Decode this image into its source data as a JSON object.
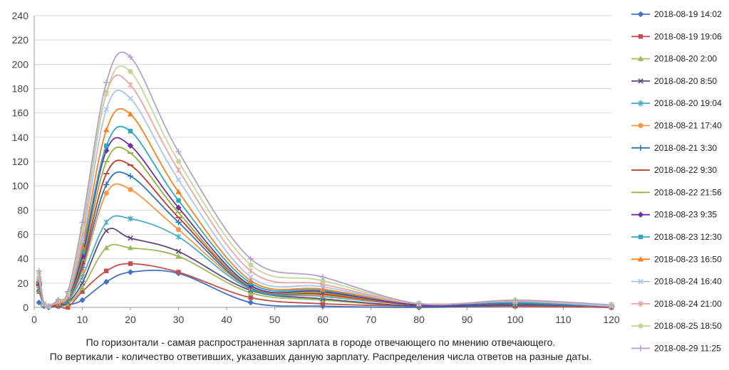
{
  "chart_data": {
    "type": "line",
    "title": "",
    "xlabel": "По горизонтали - самая распространенная зарплата в городе отвечающего по мнению отвечающего.",
    "ylabel": "По вертикали - количество ответивших, указавших данную зарплату. Распределения  числа ответов на разные даты.",
    "xlim": [
      0,
      120
    ],
    "ylim": [
      0,
      240
    ],
    "x_ticks": [
      "0",
      "10",
      "20",
      "30",
      "40",
      "50",
      "60",
      "70",
      "80",
      "90",
      "100",
      "110",
      "120"
    ],
    "y_ticks": [
      "0",
      "20",
      "40",
      "60",
      "80",
      "100",
      "120",
      "140",
      "160",
      "180",
      "200",
      "220",
      "240"
    ],
    "grid": "horizontal",
    "legend_position": "right",
    "x": [
      1,
      2,
      3,
      5,
      7,
      10,
      15,
      20,
      30,
      45,
      60,
      80,
      100,
      120
    ],
    "series": [
      {
        "name": "2018-08-19 14:02",
        "color": "#4472c4",
        "marker": "diamond",
        "values": [
          4,
          1,
          0,
          1,
          2,
          6,
          21,
          29,
          28,
          4,
          1,
          0,
          1,
          0
        ]
      },
      {
        "name": "2018-08-19 19:06",
        "color": "#c0504d",
        "marker": "square",
        "values": [
          13,
          2,
          1,
          1,
          0,
          13,
          30,
          36,
          29,
          8,
          3,
          1,
          1,
          0
        ]
      },
      {
        "name": "2018-08-20 2:00",
        "color": "#9bbb59",
        "marker": "triangle",
        "values": [
          14,
          2,
          1,
          2,
          3,
          16,
          49,
          49,
          42,
          12,
          6,
          1,
          2,
          1
        ]
      },
      {
        "name": "2018-08-20 8:50",
        "color": "#604a7b",
        "marker": "x",
        "values": [
          15,
          2,
          1,
          2,
          4,
          20,
          63,
          57,
          46,
          14,
          7,
          1,
          2,
          1
        ]
      },
      {
        "name": "2018-08-20 19:04",
        "color": "#4bacc6",
        "marker": "star",
        "values": [
          16,
          2,
          1,
          3,
          5,
          25,
          70,
          73,
          58,
          15,
          9,
          2,
          3,
          1
        ]
      },
      {
        "name": "2018-08-21 17:40",
        "color": "#f79646",
        "marker": "circle",
        "values": [
          17,
          2,
          1,
          3,
          6,
          30,
          94,
          97,
          64,
          16,
          10,
          2,
          3,
          1
        ]
      },
      {
        "name": "2018-08-21 3:30",
        "color": "#2e75b6",
        "marker": "plus",
        "values": [
          18,
          2,
          1,
          3,
          6,
          33,
          101,
          108,
          70,
          16,
          11,
          2,
          3,
          1
        ]
      },
      {
        "name": "2018-08-22 9:30",
        "color": "#c0392b",
        "marker": "dash",
        "values": [
          19,
          2,
          1,
          3,
          7,
          36,
          110,
          117,
          74,
          17,
          11,
          2,
          4,
          1
        ]
      },
      {
        "name": "2018-08-22 21:56",
        "color": "#8db33a",
        "marker": "dash",
        "values": [
          20,
          2,
          1,
          4,
          7,
          39,
          120,
          127,
          78,
          17,
          12,
          2,
          4,
          1
        ]
      },
      {
        "name": "2018-08-23 9:35",
        "color": "#7030a0",
        "marker": "diamond",
        "values": [
          21,
          2,
          1,
          4,
          8,
          42,
          129,
          133,
          82,
          18,
          13,
          2,
          4,
          1
        ]
      },
      {
        "name": "2018-08-23 12:30",
        "color": "#31a6c4",
        "marker": "square",
        "values": [
          22,
          2,
          1,
          4,
          8,
          46,
          133,
          145,
          88,
          20,
          14,
          3,
          4,
          1
        ]
      },
      {
        "name": "2018-08-23 16:50",
        "color": "#f58220",
        "marker": "triangle",
        "values": [
          23,
          3,
          1,
          4,
          9,
          50,
          146,
          159,
          95,
          22,
          15,
          3,
          5,
          1
        ]
      },
      {
        "name": "2018-08-24 16:40",
        "color": "#a9c4eb",
        "marker": "x",
        "values": [
          24,
          3,
          1,
          5,
          10,
          55,
          163,
          172,
          105,
          25,
          17,
          3,
          5,
          1
        ]
      },
      {
        "name": "2018-08-24 21:00",
        "color": "#e6a6a4",
        "marker": "star",
        "values": [
          26,
          3,
          1,
          5,
          11,
          60,
          176,
          183,
          113,
          30,
          19,
          3,
          5,
          2
        ]
      },
      {
        "name": "2018-08-25 18:50",
        "color": "#c4d79b",
        "marker": "circle",
        "values": [
          28,
          3,
          1,
          6,
          12,
          65,
          177,
          194,
          120,
          35,
          22,
          3,
          6,
          2
        ]
      },
      {
        "name": "2018-08-29 11:25",
        "color": "#b3a2c7",
        "marker": "plus",
        "values": [
          30,
          3,
          1,
          6,
          13,
          70,
          185,
          206,
          128,
          40,
          25,
          3,
          6,
          2
        ]
      }
    ]
  }
}
